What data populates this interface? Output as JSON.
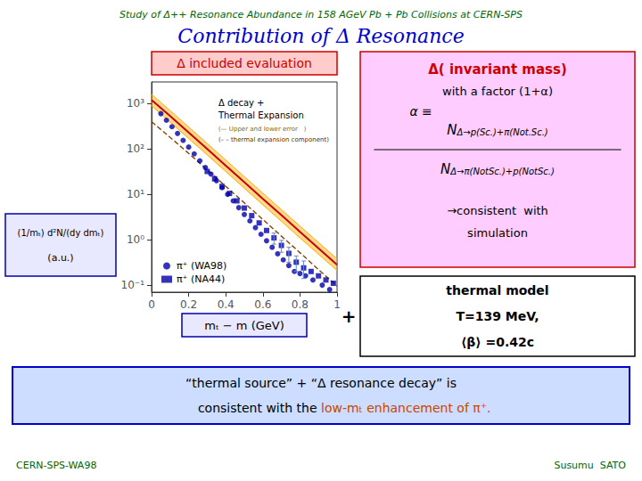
{
  "chart_data": {
    "type": "line",
    "title": "Contribution of Δ Resonance",
    "title_color": "#0000cc",
    "subtitle": "Study of Δ++ Resonance Abundance in 158 AGeV Pb + Pb Collisions at CERN-SPS",
    "subtitle_color": "#006600",
    "log": "y",
    "xlim": [
      0,
      1.0
    ],
    "xticks": [
      0,
      0.2,
      0.4,
      0.6,
      0.8,
      1
    ],
    "ylim": [
      0.07,
      3000
    ],
    "yticks": [
      {
        "value": 0.1,
        "label": "10⁻¹"
      },
      {
        "value": 1,
        "label": "10⁰"
      },
      {
        "value": 10,
        "label": "10¹"
      },
      {
        "value": 100,
        "label": "10²"
      },
      {
        "value": 1000,
        "label": "10³"
      }
    ],
    "grid": false,
    "legend": "lower left",
    "series": [
      {
        "type": "band",
        "color": "#ffaa00",
        "x": [
          0.0,
          0.1,
          0.2,
          0.3,
          0.4,
          0.5,
          0.6,
          0.7,
          0.8,
          0.9,
          1.0
        ],
        "upper": [
          1600,
          700,
          305,
          132,
          57,
          24.5,
          10.6,
          4.6,
          2.0,
          0.87,
          0.38
        ],
        "lower": [
          900,
          390,
          170,
          74,
          32,
          13.7,
          5.9,
          2.55,
          1.1,
          0.48,
          0.21
        ]
      },
      {
        "type": "line",
        "line_style": "dashed",
        "color": "#884400",
        "x": [
          0.0,
          0.1,
          0.2,
          0.3,
          0.4,
          0.5,
          0.6,
          0.7,
          0.8,
          0.9,
          1.0
        ],
        "values": [
          400,
          180,
          80,
          35,
          15,
          6.5,
          2.8,
          1.2,
          0.52,
          0.22,
          0.095
        ]
      },
      {
        "type": "line",
        "line_style": "solid",
        "color": "#cc0000",
        "x": [
          0.0,
          0.1,
          0.2,
          0.3,
          0.4,
          0.5,
          0.6,
          0.7,
          0.8,
          0.9,
          1.0
        ],
        "values": [
          1200,
          530,
          230,
          100,
          43,
          18.5,
          8.0,
          3.5,
          1.5,
          0.65,
          0.28
        ]
      },
      {
        "type": "scatter",
        "name": "π⁺ (WA98)",
        "marker": "circle",
        "color": "#0000aa",
        "x": [
          0.05,
          0.08,
          0.11,
          0.14,
          0.17,
          0.2,
          0.23,
          0.26,
          0.29,
          0.32,
          0.35,
          0.38,
          0.41,
          0.44,
          0.47,
          0.5,
          0.53,
          0.56,
          0.59,
          0.62,
          0.65,
          0.68,
          0.71,
          0.74,
          0.77,
          0.8,
          0.83,
          0.87,
          0.92,
          0.96
        ],
        "values": [
          600,
          430,
          310,
          220,
          155,
          110,
          78,
          55,
          39,
          28,
          20,
          14,
          10,
          7.2,
          5.1,
          3.6,
          2.6,
          1.85,
          1.32,
          0.95,
          0.68,
          0.49,
          0.36,
          0.27,
          0.2,
          0.18,
          0.16,
          0.13,
          0.1,
          0.08
        ]
      },
      {
        "type": "scatter",
        "name": "π⁺ (NA44)",
        "marker": "square",
        "color": "#0000aa",
        "x": [
          0.3,
          0.34,
          0.38,
          0.42,
          0.46,
          0.5,
          0.54,
          0.58,
          0.62,
          0.66,
          0.7,
          0.74,
          0.78,
          0.82,
          0.86,
          0.9,
          0.94,
          0.98
        ],
        "values": [
          32,
          22,
          15,
          10.5,
          7.2,
          5.0,
          3.4,
          2.35,
          1.6,
          1.1,
          0.75,
          0.5,
          0.32,
          0.24,
          0.2,
          0.16,
          0.13,
          0.11
        ]
      },
      {
        "type": "errorbar",
        "color": "#6688cc",
        "x": [
          0.66,
          0.7,
          0.74,
          0.78,
          0.82
        ],
        "values": [
          1.1,
          0.75,
          0.5,
          0.32,
          0.24
        ],
        "errors": [
          0.3,
          0.22,
          0.18,
          0.12,
          0.1
        ]
      }
    ],
    "annotations": [
      {
        "text": "Δ decay +",
        "color": "#000000"
      },
      {
        "text": "Thermal Expansion",
        "color": "#000000"
      },
      {
        "text": "(— Upper and lower error   )",
        "color": "#886600"
      },
      {
        "text": "(– – thermal expansion component)",
        "color": "#553300"
      }
    ],
    "joiner": "+",
    "boxes": [
      {
        "color": "#cc0000",
        "background": "#ffcccc",
        "text_color": "#cc0000",
        "texts": [
          "Δ included evaluation"
        ]
      },
      {
        "color": "#0000aa",
        "background": "#e8e8ff",
        "text_color": "#000000",
        "texts": [
          "(1/mₜ) d²N/(dy dmₜ)",
          "(a.u.)"
        ]
      },
      {
        "color": "#0000aa",
        "background": "#e8e8ff",
        "text_color": "#000000",
        "texts": [
          "mₜ − m (GeV)"
        ]
      },
      {
        "color": "#cc0000",
        "background": "#ffccff",
        "text_color": "#000000",
        "title_color": "#cc0000",
        "texts": [
          "Δ( invariant mass)",
          "with a factor (1+α)",
          "α ≡",
          "→consistent  with",
          "simulation"
        ],
        "numerator": [
          "N",
          "Δ→p(Sc.)+π(Not.Sc.)"
        ],
        "denominator": [
          "N",
          "Δ→π(NotSc.)+p(NotSc.)"
        ]
      },
      {
        "color": "#000000",
        "background": "#ffffff",
        "text_color": "#000000",
        "texts": [
          "thermal model",
          "T=139 MeV,",
          "⟨β⟩ =0.42c"
        ]
      },
      {
        "color": "#0000cc",
        "background": "#ccddff",
        "text_color": "#000000",
        "highlight_color": "#cc4400",
        "texts": [
          "“thermal source” + “Δ resonance decay” is",
          "consistent with the ",
          "low-mₜ enhancement of π⁺."
        ]
      }
    ],
    "footer": [
      "CERN-SPS-WA98",
      "Susumu  SATO"
    ],
    "footer_color": "#006600"
  }
}
